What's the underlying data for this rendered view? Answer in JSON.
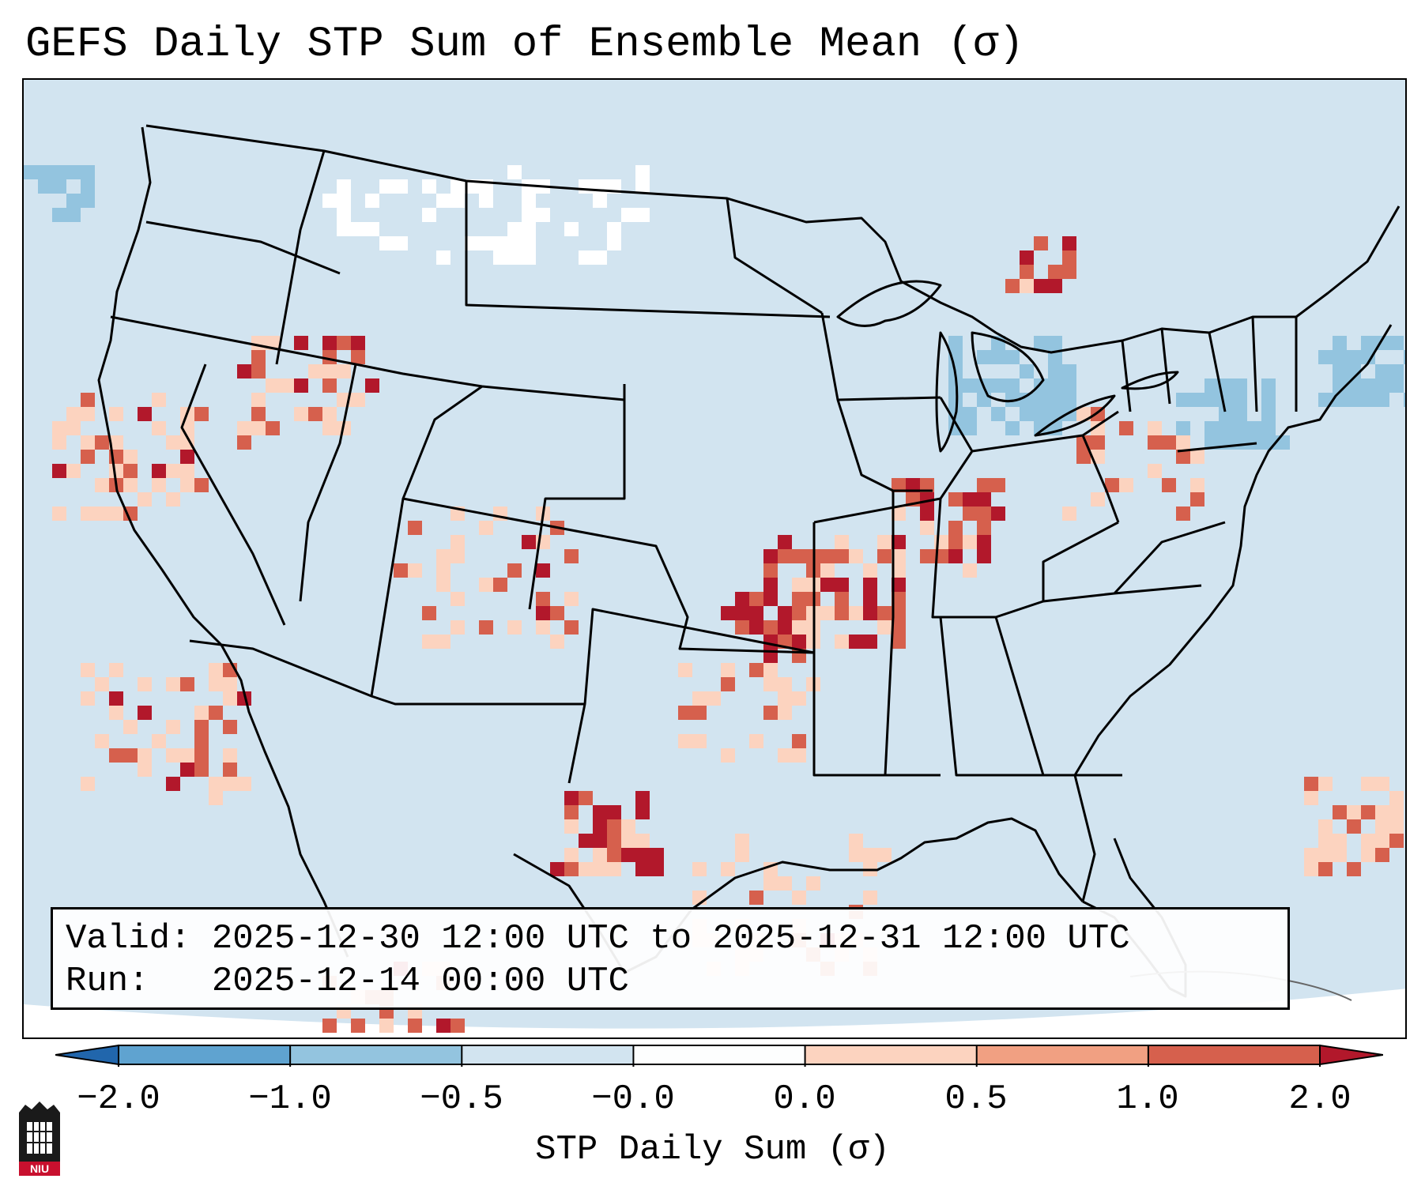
{
  "title": "GEFS Daily STP Sum of Ensemble Mean (σ)",
  "info": {
    "valid_label": "Valid:",
    "valid_value": "2025-12-30 12:00 UTC to 2025-12-31 12:00 UTC",
    "run_label": "Run:",
    "run_value": "2025-12-14 00:00 UTC"
  },
  "colorbar": {
    "label": "STP Daily Sum (σ)",
    "ticks": [
      "−2.0",
      "−1.0",
      "−0.5",
      "−0.0",
      "0.0",
      "0.5",
      "1.0",
      "2.0"
    ],
    "colors": [
      "#2f7fbf",
      "#5fa3d0",
      "#93c4df",
      "#d2e4f0",
      "#fdfefe",
      "#fcd3bf",
      "#f1a082",
      "#d6604d",
      "#b2182b"
    ]
  },
  "map": {
    "background_color": "#d2e4f0",
    "state_line_color": "#000000",
    "high_anomaly_color": "#b2182b",
    "mid_anomaly_color": "#d6604d",
    "low_anomaly_color": "#fcd3bf"
  },
  "logo": {
    "text": "NIU"
  }
}
